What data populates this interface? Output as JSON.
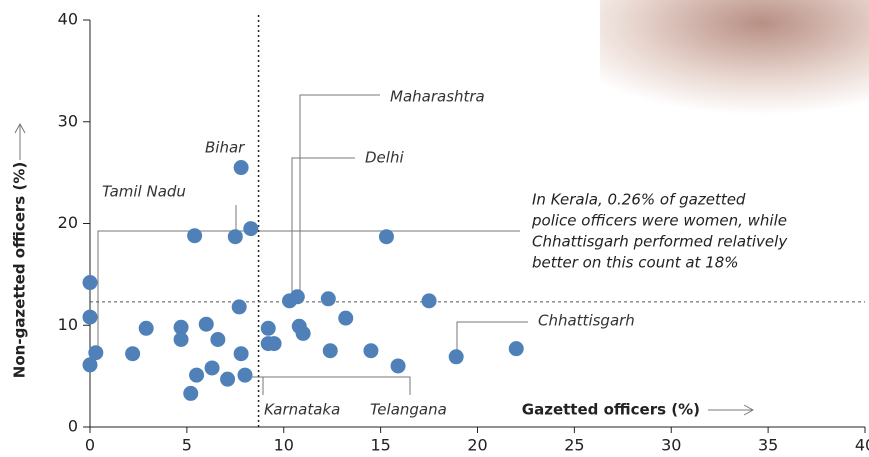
{
  "chart_data": {
    "type": "scatter",
    "x_label": "Gazetted officers (%)",
    "y_label": "Non-gazetted officers (%)",
    "color": "#4f81b8",
    "xlim": [
      0,
      40
    ],
    "xticks": [
      0,
      5,
      10,
      15,
      20,
      25,
      30,
      35,
      40
    ],
    "ylim": [
      0,
      40
    ],
    "yticks": [
      0,
      10,
      20,
      30,
      40
    ],
    "vlines": [
      8.7
    ],
    "hlines": [
      12.3
    ],
    "x": [
      0,
      0,
      0,
      0.3,
      2.2,
      2.9,
      4.7,
      4.7,
      5.2,
      5.4,
      5.5,
      6.0,
      6.3,
      6.6,
      7.1,
      7.5,
      7.7,
      7.8,
      7.8,
      8.0,
      8.3,
      9.2,
      9.2,
      9.5,
      10.3,
      10.7,
      10.8,
      11.0,
      12.3,
      12.4,
      13.2,
      15.3,
      14.5,
      15.9,
      17.5,
      18.9,
      22.0
    ],
    "y": [
      14.2,
      10.8,
      6.1,
      7.3,
      7.2,
      9.7,
      9.8,
      8.6,
      3.3,
      18.8,
      5.1,
      10.1,
      5.8,
      8.6,
      4.7,
      18.7,
      11.8,
      25.5,
      7.2,
      5.1,
      19.5,
      9.7,
      8.2,
      8.2,
      12.4,
      12.8,
      9.9,
      9.2,
      12.6,
      7.5,
      10.7,
      18.7,
      7.5,
      6.0,
      12.4,
      6.9,
      7.7
    ],
    "labels": [
      "Bihar",
      "Tamil Nadu",
      "Maharashtra",
      "Delhi",
      "Karnataka",
      "Telangana",
      "Chhattisgarh"
    ],
    "annotation": [
      "In Kerala, 0.26% of gazetted",
      "police officers were women, while",
      "Chhattisgarh performed relatively",
      "better on this count at 18%"
    ]
  }
}
